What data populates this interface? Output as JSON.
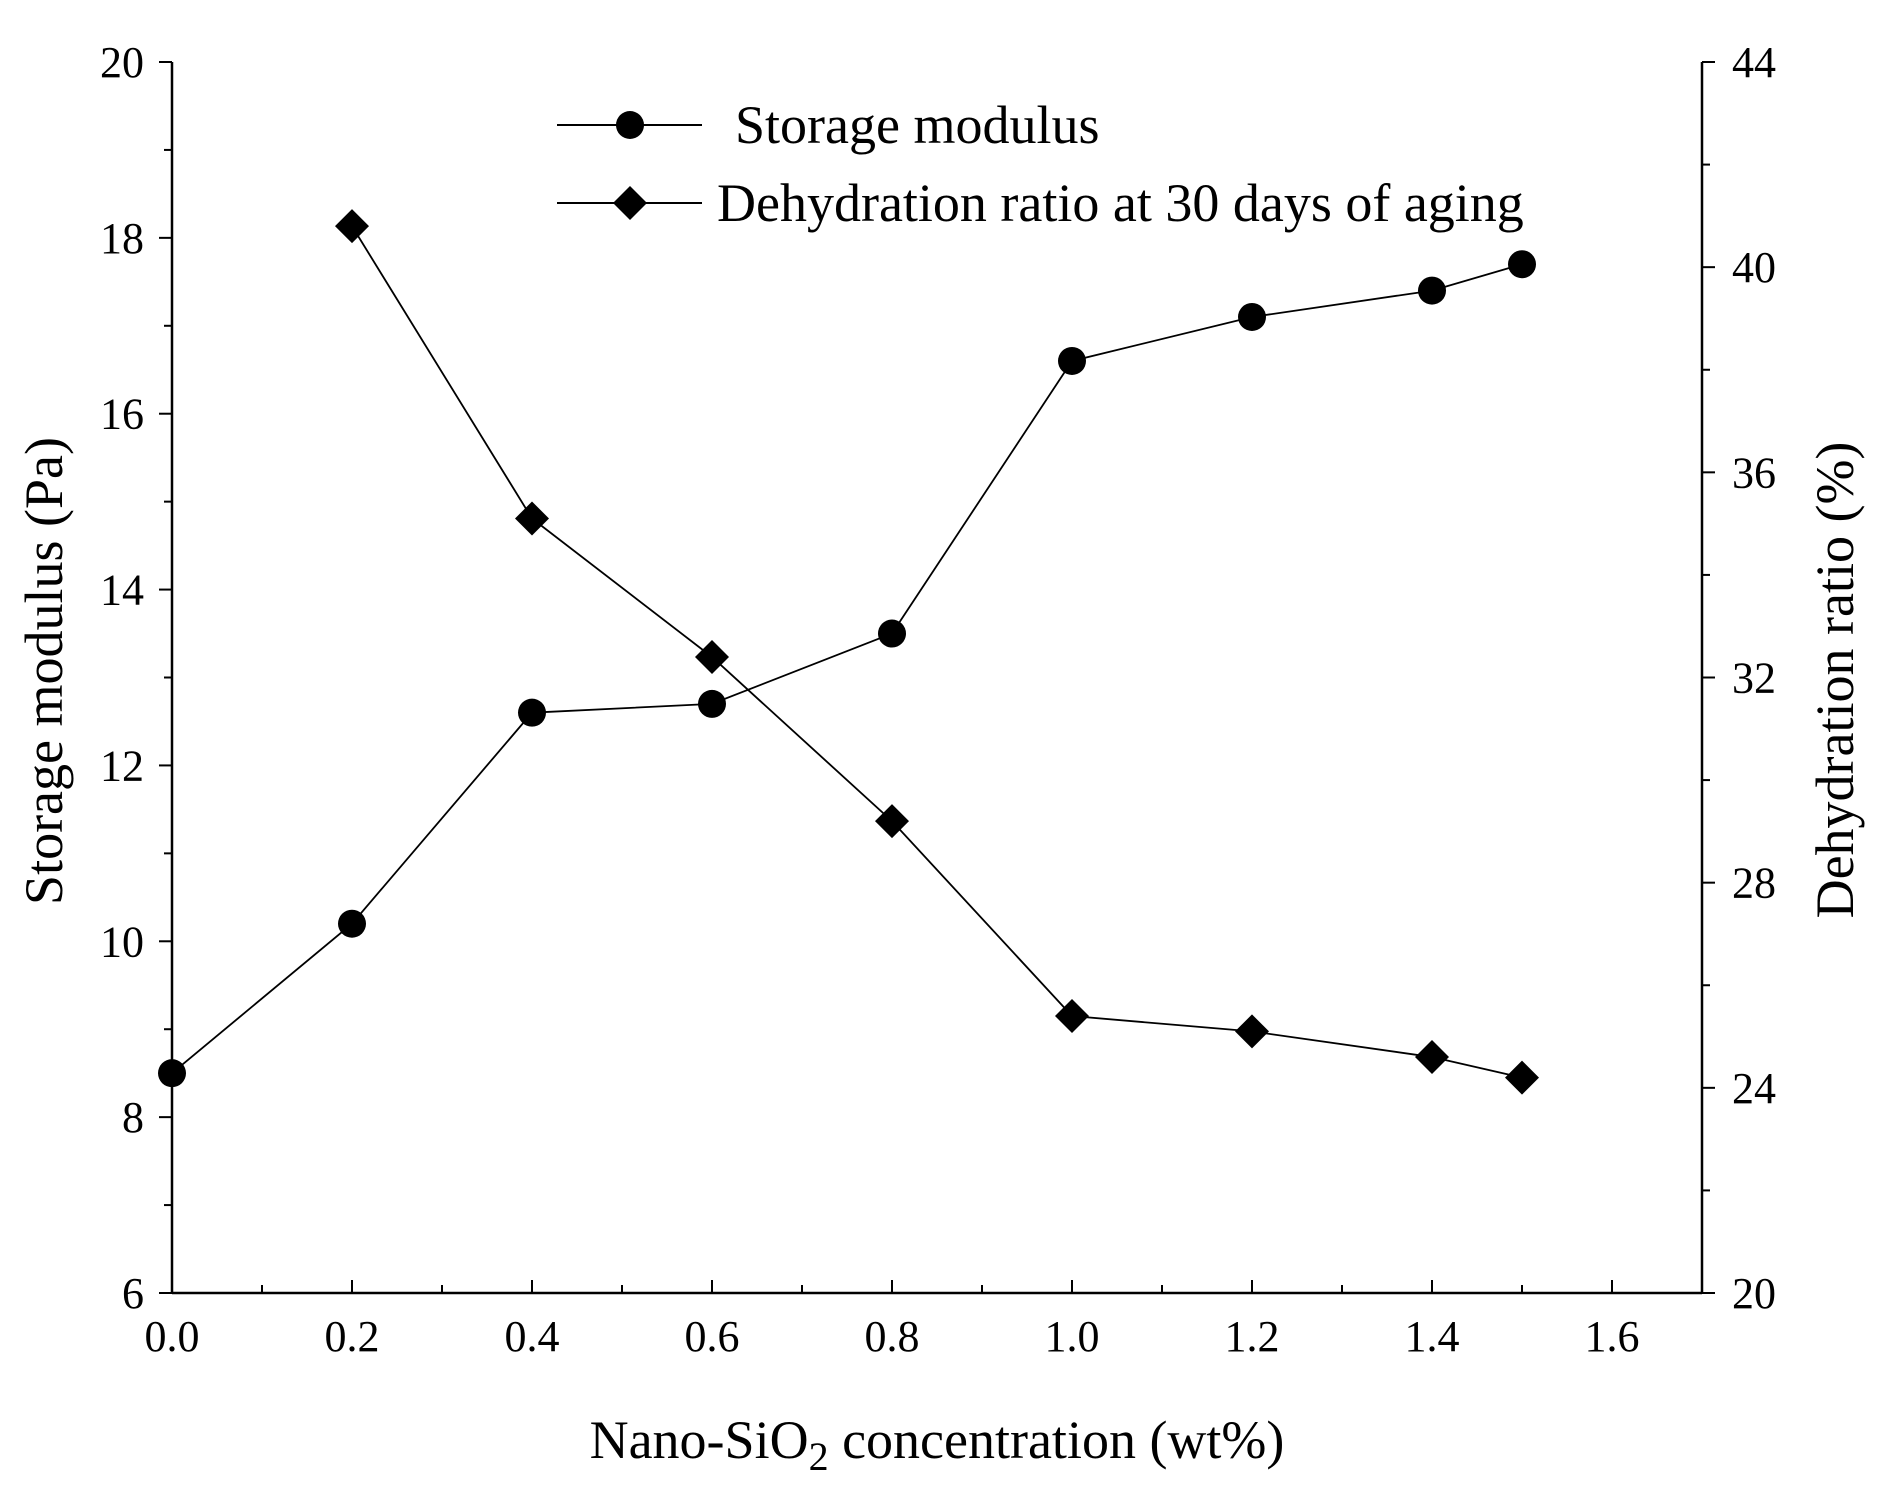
{
  "chart_data": {
    "type": "line",
    "title": "",
    "xlabel": {
      "prefix": "Nano-SiO",
      "sub": "2",
      "suffix": " concentration (wt%)"
    },
    "ylabel_left": "Storage modulus (Pa)",
    "ylabel_right": "Dehydration ratio (%)",
    "xlim": [
      0,
      1.7
    ],
    "ylim_left": [
      6,
      20
    ],
    "ylim_right": [
      20,
      44
    ],
    "x_ticks": [
      0.0,
      0.2,
      0.4,
      0.6,
      0.8,
      1.0,
      1.2,
      1.4,
      1.6
    ],
    "x_tick_labels": [
      "0.0",
      "0.2",
      "0.4",
      "0.6",
      "0.8",
      "1.0",
      "1.2",
      "1.4",
      "1.6"
    ],
    "y_left_ticks": [
      6,
      8,
      10,
      12,
      14,
      16,
      18,
      20
    ],
    "y_left_tick_labels": [
      "6",
      "8",
      "10",
      "12",
      "14",
      "16",
      "18",
      "20"
    ],
    "y_right_ticks": [
      20,
      24,
      28,
      32,
      36,
      40,
      44
    ],
    "y_right_tick_labels": [
      "20",
      "24",
      "28",
      "32",
      "36",
      "40",
      "44"
    ],
    "legend_position": "top-right",
    "series": [
      {
        "name": "Storage modulus",
        "axis": "left",
        "marker": "circle",
        "x": [
          0.0,
          0.2,
          0.4,
          0.6,
          0.8,
          1.0,
          1.2,
          1.4,
          1.5
        ],
        "values": [
          8.5,
          10.2,
          12.6,
          12.7,
          13.5,
          16.6,
          17.1,
          17.4,
          17.7
        ]
      },
      {
        "name": "Dehydration ratio at 30 days of aging",
        "axis": "right",
        "marker": "diamond",
        "x": [
          0.2,
          0.4,
          0.6,
          0.8,
          1.0,
          1.2,
          1.4,
          1.5
        ],
        "values": [
          40.8,
          35.1,
          32.4,
          29.2,
          25.4,
          25.1,
          24.6,
          24.2
        ]
      }
    ],
    "colors": {
      "line": "#000000",
      "marker": "#000000",
      "background": "#ffffff"
    }
  }
}
